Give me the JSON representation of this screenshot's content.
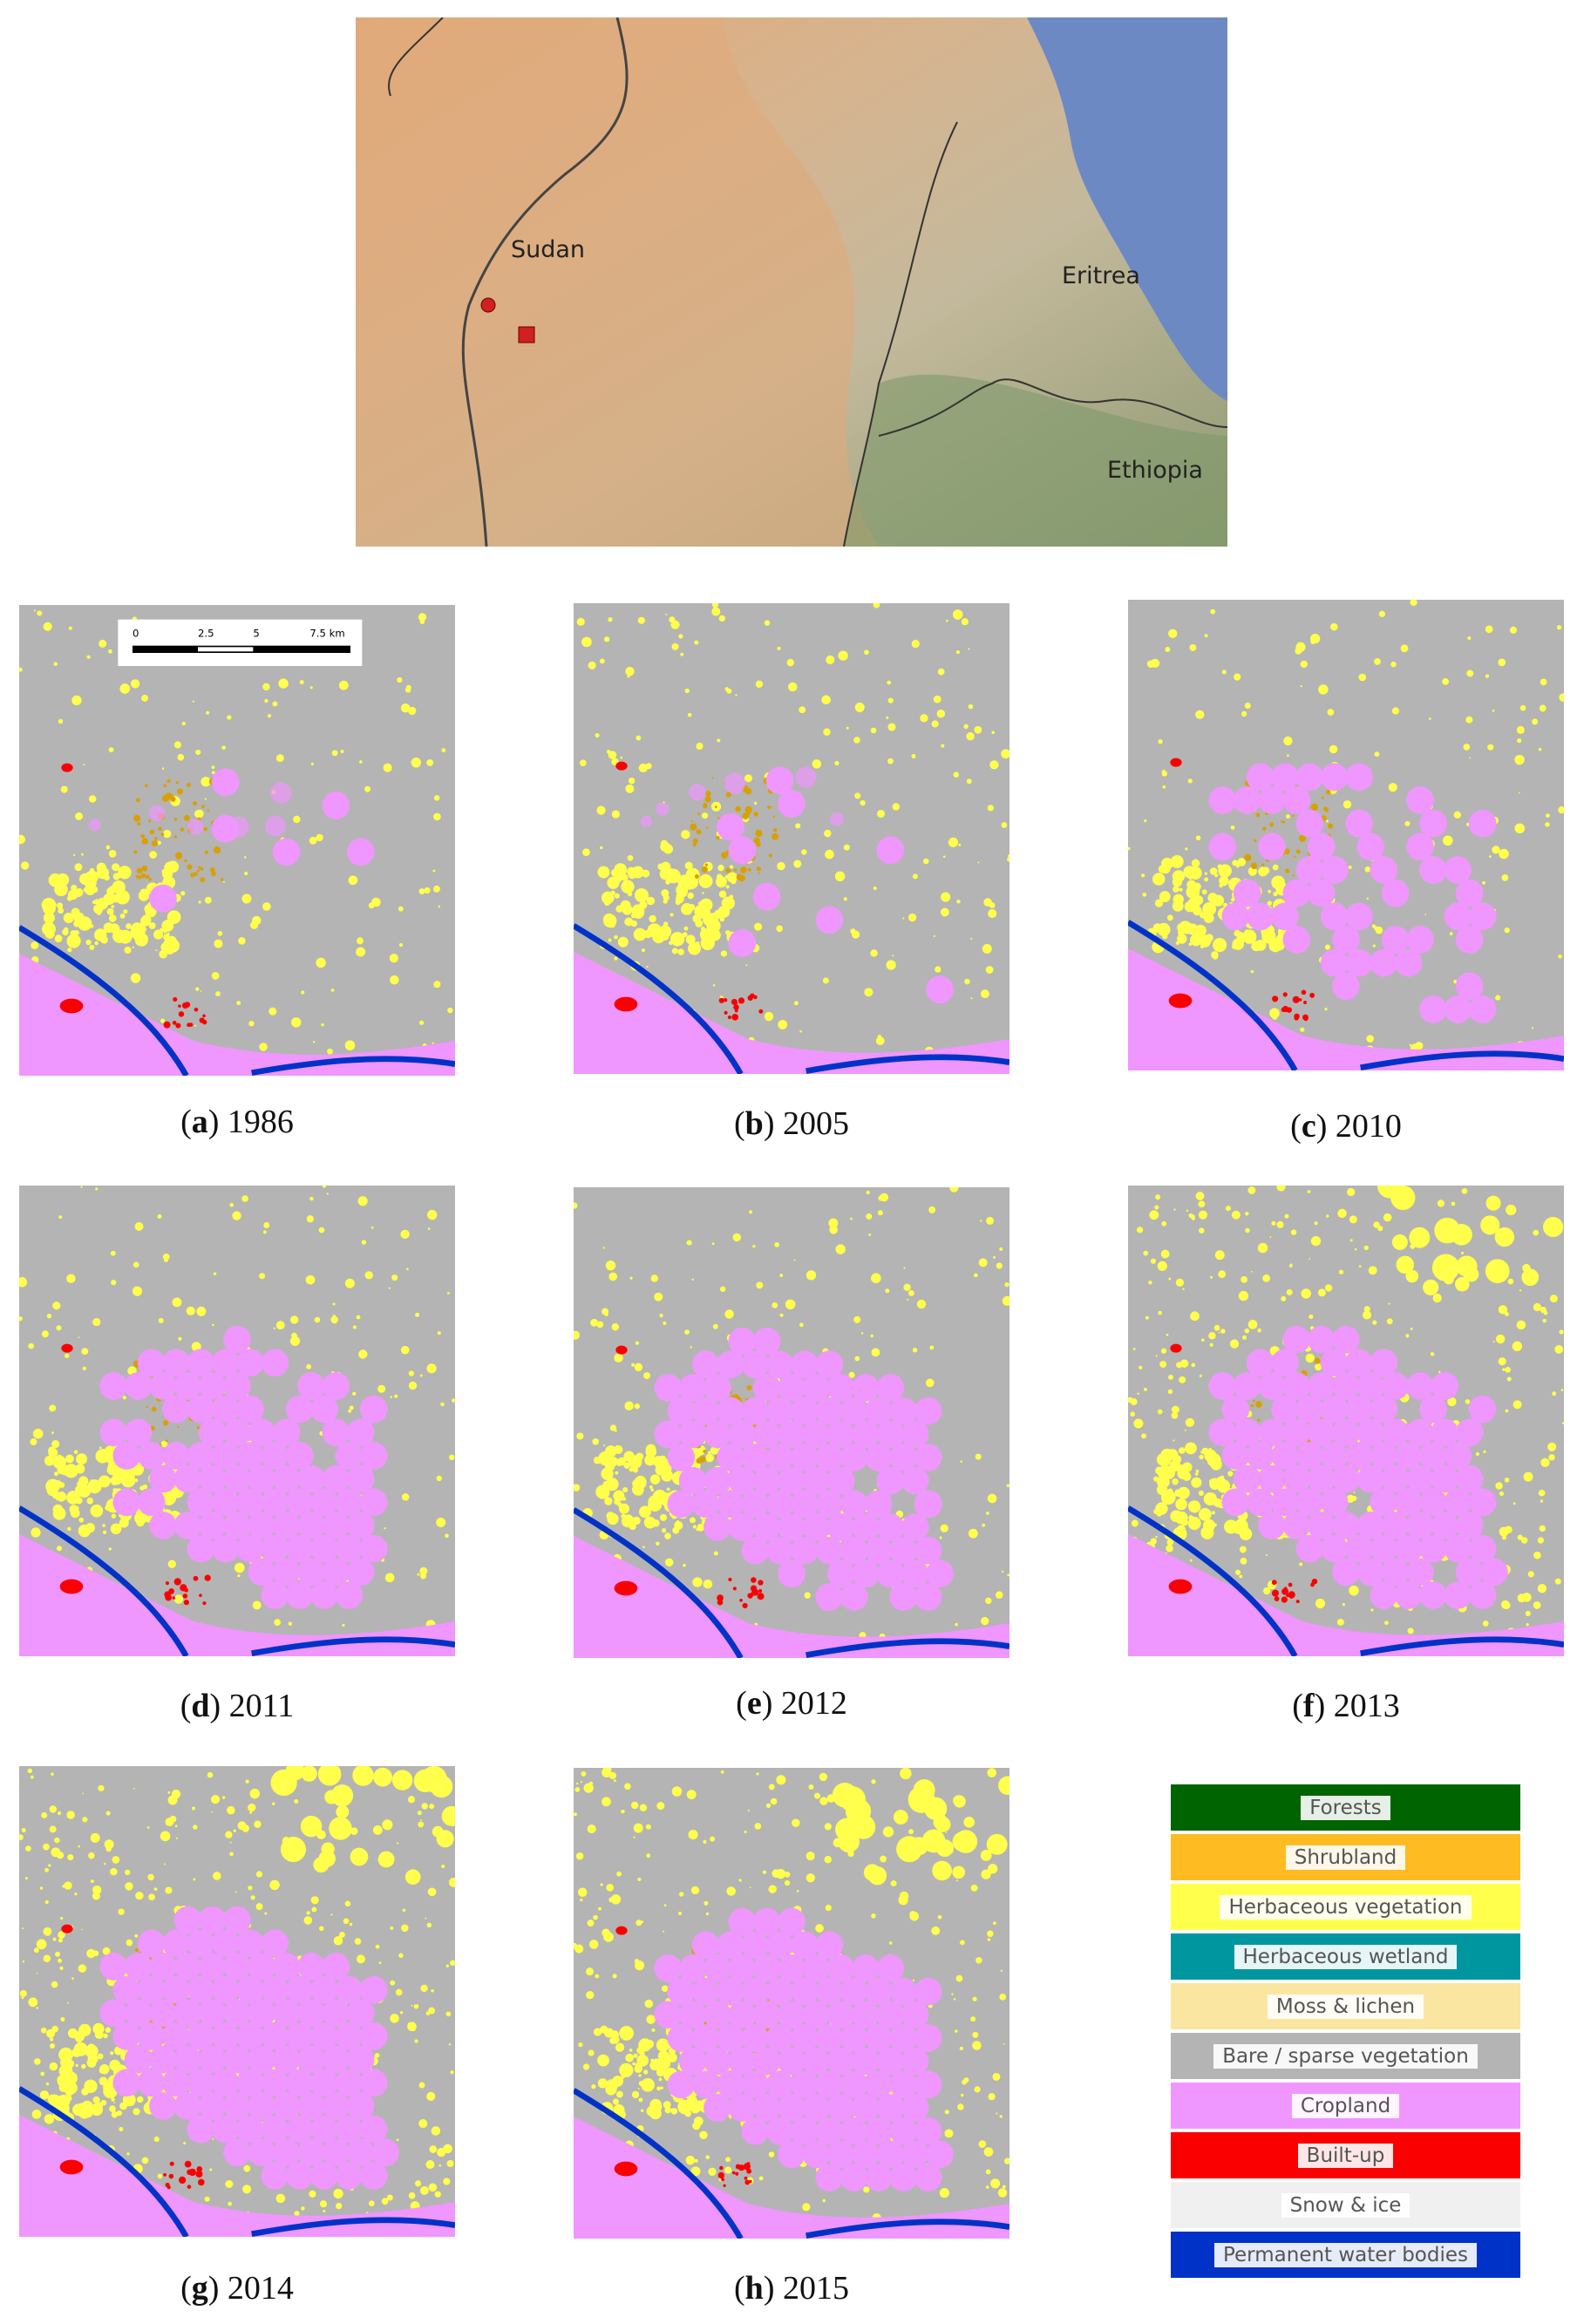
{
  "location_map": {
    "labels": [
      "Sudan",
      "Eritrea",
      "Ethiopia"
    ]
  },
  "scale_bar": {
    "ticks": [
      "0",
      "2.5",
      "5",
      "7.5 km"
    ]
  },
  "panels": [
    {
      "caption": [
        "(",
        "a",
        ") 1986"
      ]
    },
    {
      "caption": [
        "(",
        "b",
        ") 2005"
      ]
    },
    {
      "caption": [
        "(",
        "c",
        ") 2010"
      ]
    },
    {
      "caption": [
        "(",
        "d",
        ") 2011"
      ]
    },
    {
      "caption": [
        "(",
        "e",
        ") 2012"
      ]
    },
    {
      "caption": [
        "(",
        "f",
        ") 2013"
      ]
    },
    {
      "caption": [
        "(",
        "g",
        ") 2014"
      ]
    },
    {
      "caption": [
        "(",
        "h",
        ") 2015"
      ]
    }
  ],
  "legend": [
    {
      "label": "Forests",
      "color": "#006400"
    },
    {
      "label": "Shrubland",
      "color": "#ffbb22"
    },
    {
      "label": "Herbaceous vegetation",
      "color": "#ffff4c"
    },
    {
      "label": "Herbaceous wetland",
      "color": "#0096a0"
    },
    {
      "label": "Moss & lichen",
      "color": "#fae6a0"
    },
    {
      "label": "Bare / sparse vegetation",
      "color": "#b4b4b4"
    },
    {
      "label": "Cropland",
      "color": "#f096ff"
    },
    {
      "label": "Built-up",
      "color": "#fa0000"
    },
    {
      "label": "Snow & ice",
      "color": "#f0f0f0"
    },
    {
      "label": "Permanent water bodies",
      "color": "#0032c8"
    }
  ]
}
